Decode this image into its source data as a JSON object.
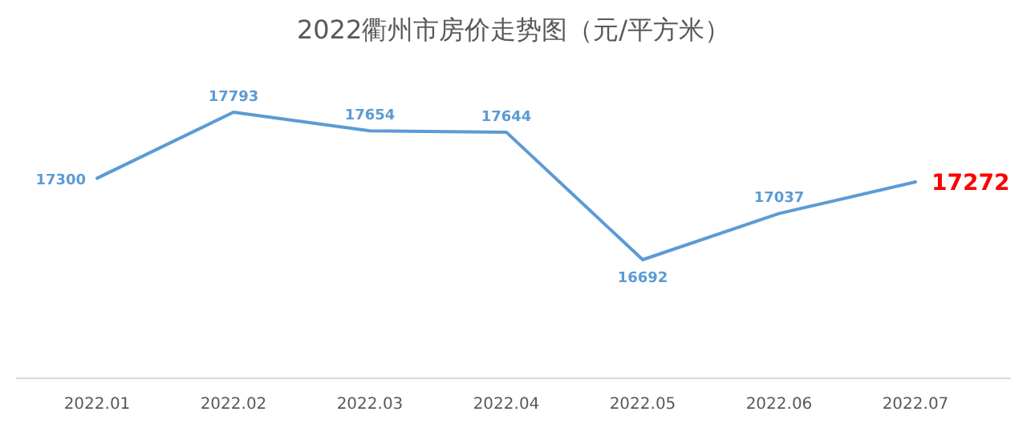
{
  "chart_data": {
    "type": "line",
    "title": "2022衢州市房价走势图（元/平方米）",
    "categories": [
      "2022.01",
      "2022.02",
      "2022.03",
      "2022.04",
      "2022.05",
      "2022.06",
      "2022.07"
    ],
    "series": [
      {
        "color": "#5b9bd5",
        "values": [
          17300,
          17793,
          17654,
          17644,
          16692,
          17037,
          17272
        ]
      }
    ],
    "data_labels": true
  }
}
